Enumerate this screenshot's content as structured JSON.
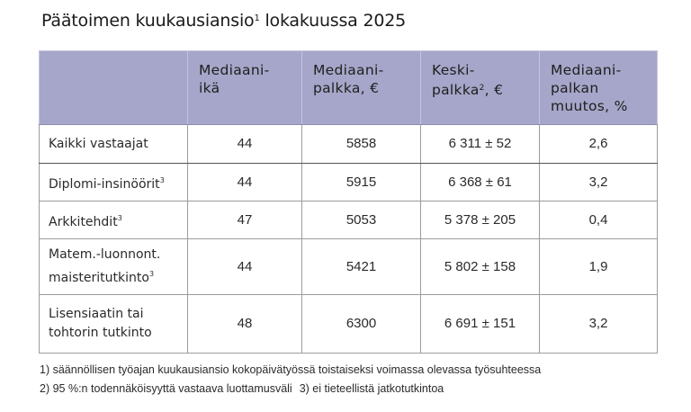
{
  "title": {
    "main": "Päätoimen kuukausiansio",
    "footnote_ref": "1",
    "suffix": " lokakuussa 2025"
  },
  "table": {
    "headers": [
      {
        "lines": [
          ""
        ]
      },
      {
        "lines": [
          "Mediaani-",
          "ikä"
        ]
      },
      {
        "lines": [
          "Mediaani-",
          "palkka, €"
        ]
      },
      {
        "lines_rich": {
          "line1": "Keski-",
          "line2_pre": "palkka",
          "line2_sup": "2",
          "line2_post": ", €"
        }
      },
      {
        "lines": [
          "Mediaani-",
          "palkan",
          "muutos, %"
        ]
      }
    ],
    "rows": [
      {
        "label_lines": [
          "Kaikki vastaajat"
        ],
        "label_sup": "",
        "median_age": "44",
        "median_salary": "5858",
        "mean_salary": "6 311 ± 52",
        "median_change": "2,6"
      },
      {
        "label_lines": [
          "Diplomi-insinöörit"
        ],
        "label_sup": "3",
        "median_age": "44",
        "median_salary": "5915",
        "mean_salary": "6 368 ± 61",
        "median_change": "3,2"
      },
      {
        "label_lines": [
          "Arkkitehdit"
        ],
        "label_sup": "3",
        "median_age": "47",
        "median_salary": "5053",
        "mean_salary": "5 378 ± 205",
        "median_change": "0,4"
      },
      {
        "label_lines": [
          "Matem.-luonnont.",
          "maisteritutkinto"
        ],
        "label_sup": "3",
        "median_age": "44",
        "median_salary": "5421",
        "mean_salary": "5 802 ± 158",
        "median_change": "1,9"
      },
      {
        "label_lines": [
          "Lisensiaatin tai",
          "tohtorin tutkinto"
        ],
        "label_sup": "",
        "median_age": "48",
        "median_salary": "6300",
        "mean_salary": "6 691 ± 151",
        "median_change": "3,2"
      }
    ]
  },
  "footnotes": {
    "note1": "1) säännöllisen työajan kuukausiansio kokopäivätyössä toistaiseksi voimassa olevassa työsuhteessa",
    "note2": "2) 95 %:n todennäköisyyttä vastaava luottamusväli",
    "note3": "3) ei tieteellistä jatkotutkintoa"
  },
  "colors": {
    "header_bg": "#a6a6ca",
    "grid": "#9c9c9c",
    "text": "#222222"
  }
}
